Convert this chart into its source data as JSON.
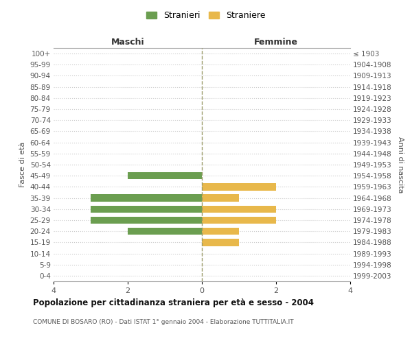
{
  "age_groups": [
    "100+",
    "95-99",
    "90-94",
    "85-89",
    "80-84",
    "75-79",
    "70-74",
    "65-69",
    "60-64",
    "55-59",
    "50-54",
    "45-49",
    "40-44",
    "35-39",
    "30-34",
    "25-29",
    "20-24",
    "15-19",
    "10-14",
    "5-9",
    "0-4"
  ],
  "birth_years": [
    "≤ 1903",
    "1904-1908",
    "1909-1913",
    "1914-1918",
    "1919-1923",
    "1924-1928",
    "1929-1933",
    "1934-1938",
    "1939-1943",
    "1944-1948",
    "1949-1953",
    "1954-1958",
    "1959-1963",
    "1964-1968",
    "1969-1973",
    "1974-1978",
    "1979-1983",
    "1984-1988",
    "1989-1993",
    "1994-1998",
    "1999-2003"
  ],
  "stranieri": [
    0,
    0,
    0,
    0,
    0,
    0,
    0,
    0,
    0,
    0,
    0,
    2,
    0,
    3,
    3,
    3,
    2,
    0,
    0,
    0,
    0
  ],
  "straniere": [
    0,
    0,
    0,
    0,
    0,
    0,
    0,
    0,
    0,
    0,
    0,
    0,
    2,
    1,
    2,
    2,
    1,
    1,
    0,
    0,
    0
  ],
  "color_stranieri": "#6b9e50",
  "color_straniere": "#e8b84b",
  "xlim": 4,
  "title_main": "Popolazione per cittadinanza straniera per età e sesso - 2004",
  "title_sub": "COMUNE DI BOSARO (RO) - Dati ISTAT 1° gennaio 2004 - Elaborazione TUTTITALIA.IT",
  "ylabel_left": "Fasce di età",
  "ylabel_right": "Anni di nascita",
  "label_maschi": "Maschi",
  "label_femmine": "Femmine",
  "legend_stranieri": "Stranieri",
  "legend_straniere": "Straniere",
  "xticks": [
    -4,
    -2,
    0,
    2,
    4
  ],
  "xticklabels": [
    "4",
    "2",
    "0",
    "2",
    "4"
  ],
  "bg_color": "#ffffff",
  "grid_color": "#cccccc",
  "dashed_line_color": "#999966"
}
